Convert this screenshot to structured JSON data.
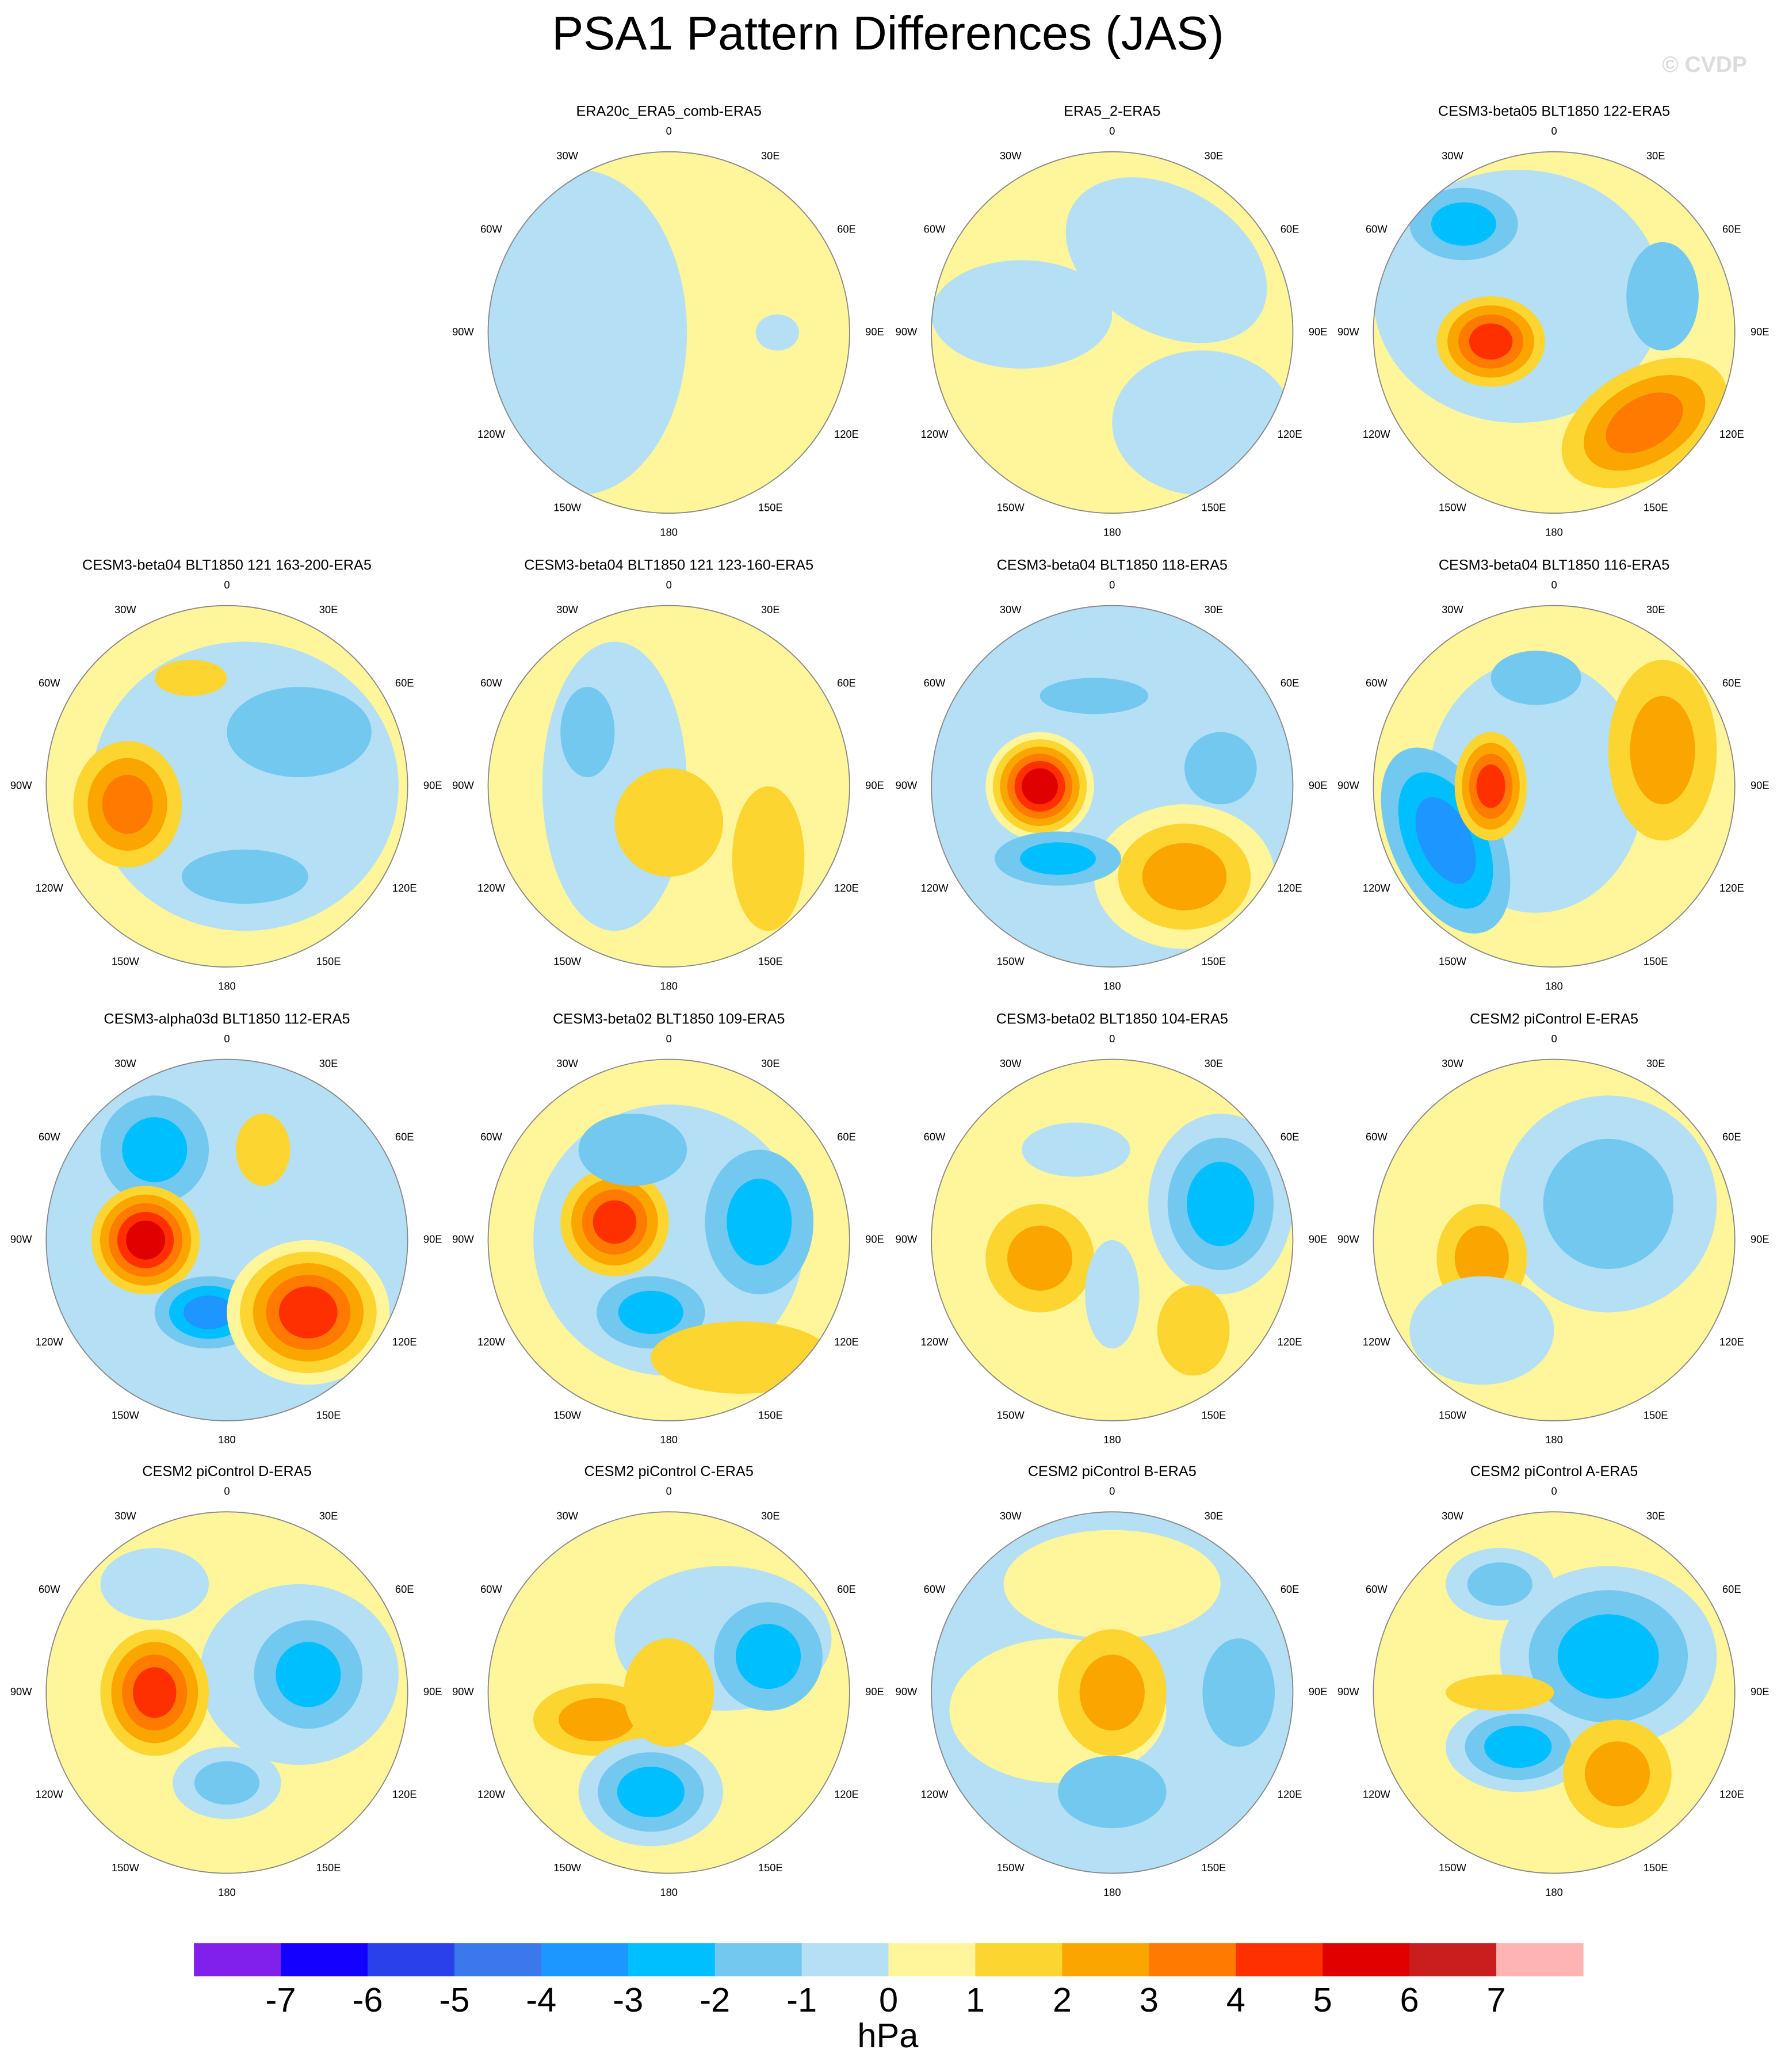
{
  "title": "PSA1 Pattern Differences (JAS)",
  "watermark": "© CVDP",
  "longitude_labels": [
    "0",
    "30E",
    "60E",
    "90E",
    "120E",
    "150E",
    "180",
    "150W",
    "120W",
    "90W",
    "60W",
    "30W"
  ],
  "panels": [
    {
      "title": "ERA20c_ERA5_comb-ERA5"
    },
    {
      "title": "ERA5_2-ERA5"
    },
    {
      "title": "CESM3-beta05 BLT1850 122-ERA5"
    },
    {
      "title": "CESM3-beta04 BLT1850 121 163-200-ERA5"
    },
    {
      "title": "CESM3-beta04 BLT1850 121 123-160-ERA5"
    },
    {
      "title": "CESM3-beta04 BLT1850 118-ERA5"
    },
    {
      "title": "CESM3-beta04 BLT1850 116-ERA5"
    },
    {
      "title": "CESM3-alpha03d BLT1850 112-ERA5"
    },
    {
      "title": "CESM3-beta02 BLT1850 109-ERA5"
    },
    {
      "title": "CESM3-beta02 BLT1850 104-ERA5"
    },
    {
      "title": "CESM2 piControl E-ERA5"
    },
    {
      "title": "CESM2 piControl D-ERA5"
    },
    {
      "title": "CESM2 piControl C-ERA5"
    },
    {
      "title": "CESM2 piControl B-ERA5"
    },
    {
      "title": "CESM2 piControl A-ERA5"
    }
  ],
  "colorbar": {
    "levels": [
      -7,
      -6,
      -5,
      -4,
      -3,
      -2,
      -1,
      0,
      1,
      2,
      3,
      4,
      5,
      6,
      7
    ],
    "colors": [
      "#8020ea",
      "#1400ff",
      "#2a40ea",
      "#3a78ec",
      "#1e96ff",
      "#00bfff",
      "#73c8f0",
      "#b4dff5",
      "#fff59a",
      "#fdd530",
      "#fba600",
      "#ff7a00",
      "#ff3000",
      "#e00000",
      "#c81e1e",
      "#ffb4b4"
    ],
    "unit": "hPa"
  }
}
